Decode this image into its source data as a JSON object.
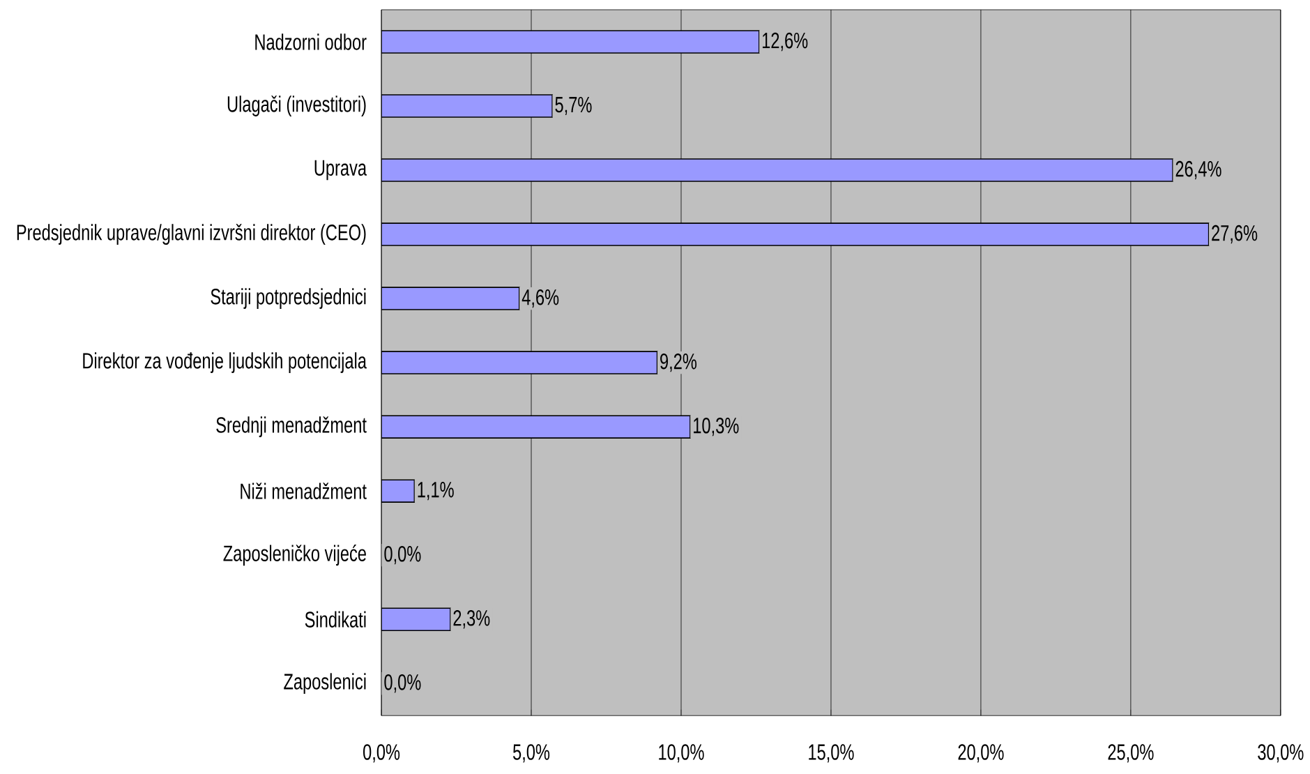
{
  "chart_data": {
    "type": "bar",
    "orientation": "horizontal",
    "categories": [
      "Nadzorni odbor",
      "Ulagači (investitori)",
      "Uprava",
      "Predsjednik uprave/glavni izvršni direktor (CEO)",
      "Stariji potpredsjednici",
      "Direktor za vođenje ljudskih potencijala",
      "Srednji menadžment",
      "Niži menadžment",
      "Zaposleničko vijeće",
      "Sindikati",
      "Zaposlenici"
    ],
    "values": [
      12.6,
      5.7,
      26.4,
      27.6,
      4.6,
      9.2,
      10.3,
      1.1,
      0.0,
      2.3,
      0.0
    ],
    "value_labels": [
      "12,6%",
      "5,7%",
      "26,4%",
      "27,6%",
      "4,6%",
      "9,2%",
      "10,3%",
      "1,1%",
      "0,0%",
      "2,3%",
      "0,0%"
    ],
    "color": "#9999ff",
    "xlim": [
      0,
      30
    ],
    "xticks": [
      {
        "value": 0,
        "label": "0,0%"
      },
      {
        "value": 5,
        "label": "5,0%"
      },
      {
        "value": 10,
        "label": "10,0%"
      },
      {
        "value": 15,
        "label": "15,0%"
      },
      {
        "value": 20,
        "label": "20,0%"
      },
      {
        "value": 25,
        "label": "25,0%"
      },
      {
        "value": 30,
        "label": "30,0%"
      }
    ],
    "grid": "x"
  }
}
